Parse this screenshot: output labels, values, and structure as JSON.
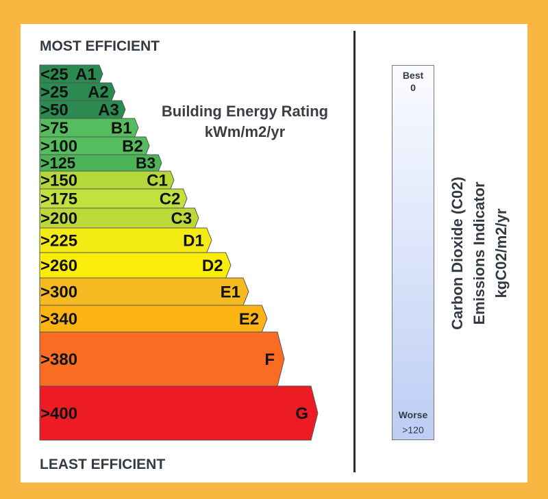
{
  "header": {
    "top": "MOST EFFICIENT",
    "bottom": "LEAST EFFICIENT"
  },
  "title": {
    "line1": "Building Energy Rating",
    "line2": "kWm/m2/yr"
  },
  "ratings": [
    {
      "range": "<25",
      "grade": "A1",
      "color": "#2a8a50"
    },
    {
      "range": ">25",
      "grade": "A2",
      "color": "#2a8a50"
    },
    {
      "range": ">50",
      "grade": "A3",
      "color": "#2a8a50"
    },
    {
      "range": ">75",
      "grade": "B1",
      "color": "#55bd5e"
    },
    {
      "range": ">100",
      "grade": "B2",
      "color": "#55bd5e"
    },
    {
      "range": ">125",
      "grade": "B3",
      "color": "#4cb457"
    },
    {
      "range": ">150",
      "grade": "C1",
      "color": "#b4d83a"
    },
    {
      "range": ">175",
      "grade": "C2",
      "color": "#c2e03e"
    },
    {
      "range": ">200",
      "grade": "C3",
      "color": "#bcd93a"
    },
    {
      "range": ">225",
      "grade": "D1",
      "color": "#f4eb14"
    },
    {
      "range": ">260",
      "grade": "D2",
      "color": "#fbed0a"
    },
    {
      "range": ">300",
      "grade": "E1",
      "color": "#f5b921"
    },
    {
      "range": ">340",
      "grade": "E2",
      "color": "#fbb414"
    },
    {
      "range": ">380",
      "grade": "F",
      "color": "#fa6b23"
    },
    {
      "range": ">400",
      "grade": "G",
      "color": "#ed1c24"
    }
  ],
  "co2": {
    "best_label": "Best",
    "best_value": "0",
    "worse_label": "Worse",
    "worse_value": ">120",
    "line1": "Carbon Dioxide (C02)",
    "line2": "Emissions Indicator",
    "line3": "kgC02/m2/yr"
  }
}
